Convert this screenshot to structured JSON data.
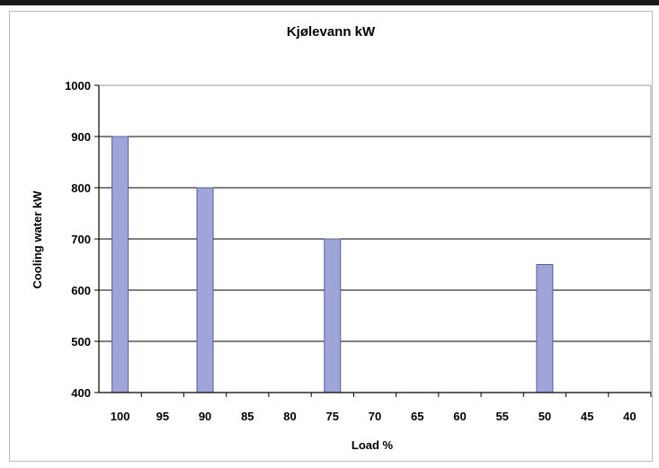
{
  "chart_data": {
    "type": "bar",
    "title": "Kjølevann kW",
    "xlabel": "Load %",
    "ylabel": "Cooling water  kW",
    "categories": [
      "100",
      "95",
      "90",
      "85",
      "80",
      "75",
      "70",
      "65",
      "60",
      "55",
      "50",
      "45",
      "40"
    ],
    "series": [
      {
        "values": [
          900,
          null,
          800,
          null,
          null,
          700,
          null,
          null,
          null,
          null,
          650,
          null,
          null
        ]
      }
    ],
    "ylim": [
      400,
      1000
    ],
    "yticks": [
      400,
      500,
      600,
      700,
      800,
      900,
      1000
    ],
    "grid": true,
    "colors": {
      "bar": "#9fa4d9",
      "bar_edge": "#5a5f9a",
      "grid": "#000000"
    }
  }
}
